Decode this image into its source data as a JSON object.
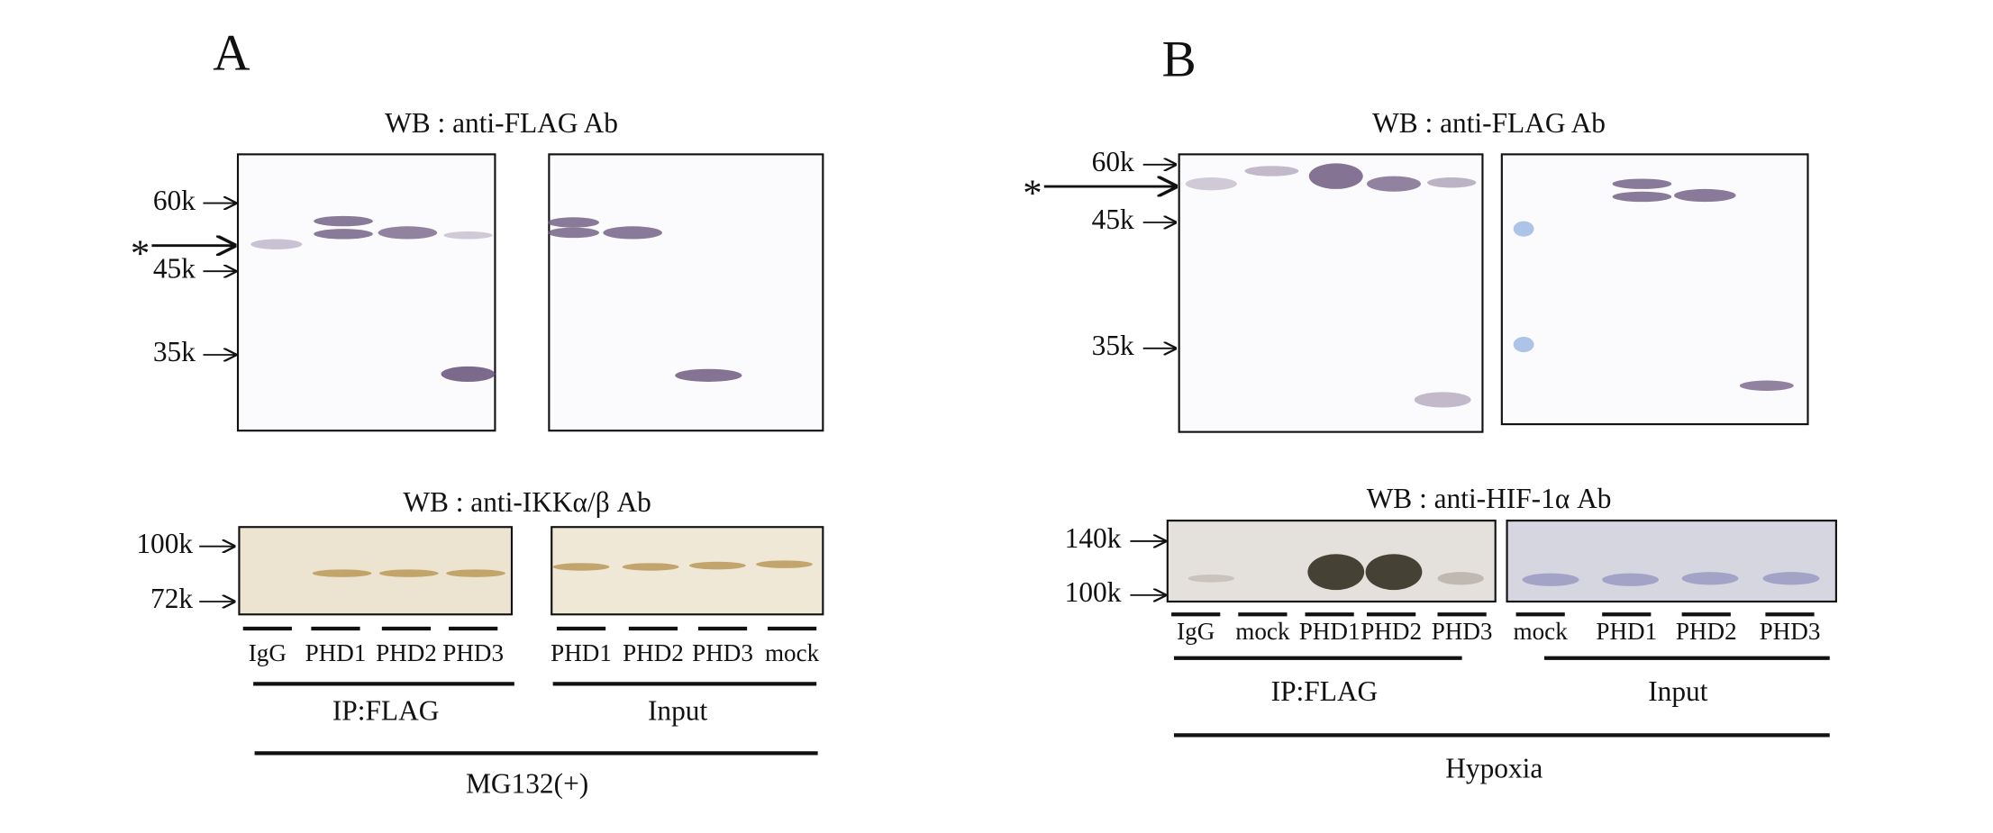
{
  "panels": [
    {
      "label": "A",
      "top_blot": {
        "title": "WB : anti-FLAG Ab",
        "markers": [
          "60k",
          "45k",
          "35k"
        ],
        "asterisk": "*"
      },
      "bottom_blot": {
        "title": "WB : anti-IKKα/β Ab",
        "markers": [
          "100k",
          "72k"
        ]
      },
      "lanes": [
        "IgG",
        "PHD1",
        "PHD2",
        "PHD3",
        "PHD1",
        "PHD2",
        "PHD3",
        "mock"
      ],
      "groups": [
        "IP:FLAG",
        "Input"
      ],
      "condition": "MG132(+)"
    },
    {
      "label": "B",
      "top_blot": {
        "title": "WB : anti-FLAG Ab",
        "markers": [
          "60k",
          "45k",
          "35k"
        ],
        "asterisk": "*"
      },
      "bottom_blot": {
        "title": "WB : anti-HIF-1α Ab",
        "markers": [
          "140k",
          "100k"
        ]
      },
      "lanes": [
        "IgG",
        "mock",
        "PHD1",
        "PHD2",
        "PHD3",
        "mock",
        "PHD1",
        "PHD2",
        "PHD3"
      ],
      "groups": [
        "IP:FLAG",
        "Input"
      ],
      "condition": "Hypoxia"
    }
  ]
}
